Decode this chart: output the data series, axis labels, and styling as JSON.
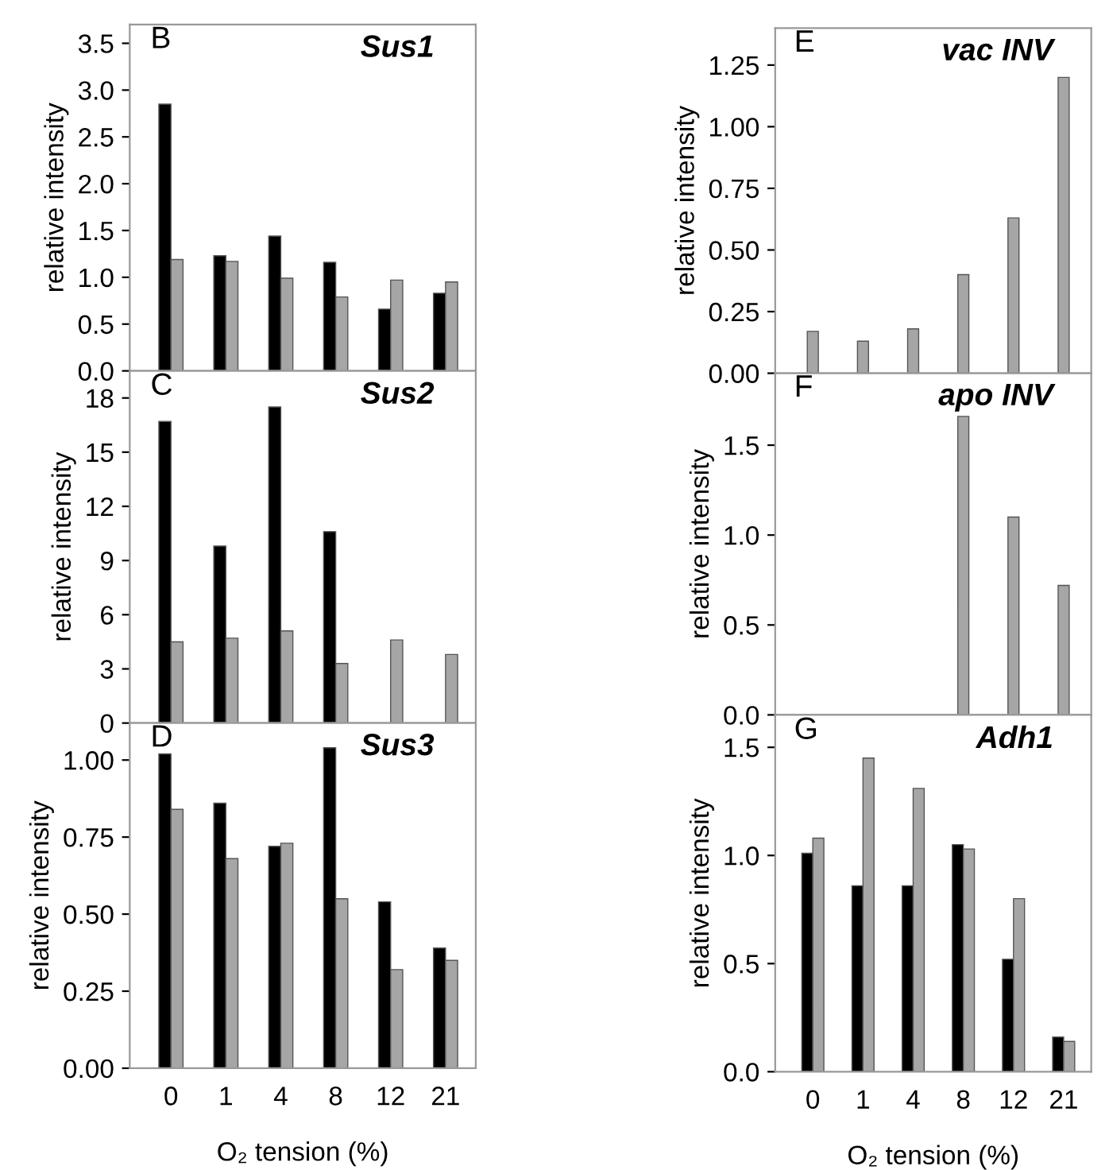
{
  "chart_data": [
    {
      "type": "bar",
      "title": "Sus1",
      "annotations": [
        "B"
      ],
      "ylabel": "relative intensity",
      "categories": [
        "0",
        "1",
        "4",
        "8",
        "12",
        "21"
      ],
      "ylim": [
        0,
        3.7
      ],
      "yticks": [
        {
          "value": 0,
          "label": "0.0"
        },
        0.5,
        {
          "value": 1,
          "label": "1.0"
        },
        1.5,
        {
          "value": 2,
          "label": "2.0"
        },
        2.5,
        {
          "value": 3,
          "label": "3.0"
        },
        3.5
      ],
      "tick_labels": "y",
      "series": [
        {
          "color": "#000000",
          "values": [
            2.85,
            1.23,
            1.44,
            1.16,
            0.66,
            0.83
          ]
        },
        {
          "color": "#a6a6a6",
          "values": [
            1.19,
            1.17,
            0.99,
            0.79,
            0.97,
            0.95
          ]
        }
      ]
    },
    {
      "type": "bar",
      "title": "Sus2",
      "annotations": [
        "C"
      ],
      "ylabel": "relative intensity",
      "categories": [
        "0",
        "1",
        "4",
        "8",
        "12",
        "21"
      ],
      "ylim": [
        0,
        19.5
      ],
      "yticks": [
        0,
        3,
        6,
        9,
        12,
        15,
        18
      ],
      "tick_labels": "y",
      "series": [
        {
          "color": "#000000",
          "values": [
            16.7,
            9.8,
            17.5,
            10.6,
            null,
            null
          ]
        },
        {
          "color": "#a6a6a6",
          "values": [
            4.5,
            4.7,
            5.1,
            3.3,
            4.6,
            3.8
          ]
        }
      ]
    },
    {
      "type": "bar",
      "title": "Sus3",
      "annotations": [
        "D"
      ],
      "ylabel": "relative intensity",
      "xlabel": "O₂ tension (%)",
      "categories": [
        "0",
        "1",
        "4",
        "8",
        "12",
        "21"
      ],
      "ylim": [
        0,
        1.12
      ],
      "yticks": [
        {
          "value": 0,
          "label": "0.00"
        },
        0.25,
        {
          "value": 0.5,
          "label": "0.50"
        },
        0.75,
        {
          "value": 1,
          "label": "1.00"
        }
      ],
      "series": [
        {
          "color": "#000000",
          "values": [
            1.02,
            0.86,
            0.72,
            1.04,
            0.54,
            0.39
          ]
        },
        {
          "color": "#a6a6a6",
          "values": [
            0.84,
            0.68,
            0.73,
            0.55,
            0.32,
            0.35
          ]
        }
      ]
    },
    {
      "type": "bar",
      "title": "vac INV",
      "annotations": [
        "E"
      ],
      "ylabel": "relative intensity",
      "categories": [
        "0",
        "1",
        "4",
        "8",
        "12",
        "21"
      ],
      "ylim": [
        0,
        1.4
      ],
      "yticks": [
        {
          "value": 0,
          "label": "0.00"
        },
        0.25,
        {
          "value": 0.5,
          "label": "0.50"
        },
        0.75,
        {
          "value": 1,
          "label": "1.00"
        },
        1.25
      ],
      "tick_labels": "y",
      "series": [
        {
          "color": "#a6a6a6",
          "values": [
            0.17,
            0.13,
            0.18,
            0.4,
            0.63,
            1.2
          ]
        }
      ]
    },
    {
      "type": "bar",
      "title": "apo INV",
      "annotations": [
        "F"
      ],
      "ylabel": "relative intensity",
      "categories": [
        "0",
        "1",
        "4",
        "8",
        "12",
        "21"
      ],
      "ylim": [
        0,
        1.9
      ],
      "yticks": [
        {
          "value": 0,
          "label": "0.0"
        },
        0.5,
        {
          "value": 1,
          "label": "1.0"
        },
        1.5
      ],
      "tick_labels": "y",
      "series": [
        {
          "color": "#a6a6a6",
          "values": [
            null,
            null,
            null,
            1.66,
            1.1,
            0.72
          ]
        }
      ]
    },
    {
      "type": "bar",
      "title": "Adh1",
      "annotations": [
        "G"
      ],
      "ylabel": "relative intensity",
      "xlabel": "O₂ tension (%)",
      "categories": [
        "0",
        "1",
        "4",
        "8",
        "12",
        "21"
      ],
      "ylim": [
        0,
        1.65
      ],
      "yticks": [
        {
          "value": 0,
          "label": "0.0"
        },
        0.5,
        {
          "value": 1,
          "label": "1.0"
        },
        1.5
      ],
      "series": [
        {
          "color": "#000000",
          "values": [
            1.01,
            0.86,
            0.86,
            1.05,
            0.52,
            0.16
          ]
        },
        {
          "color": "#a6a6a6",
          "values": [
            1.08,
            1.45,
            1.31,
            1.03,
            0.8,
            0.14
          ]
        }
      ]
    }
  ]
}
